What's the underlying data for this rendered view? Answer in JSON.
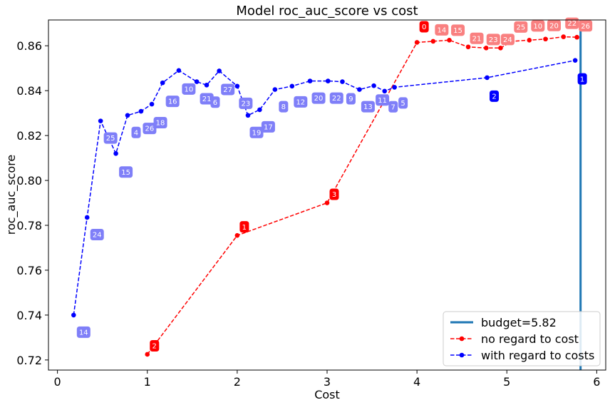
{
  "chart_data": {
    "type": "line",
    "title": "Model roc_auc_score vs cost",
    "xlabel": "Cost",
    "ylabel": "roc_auc_score",
    "xlim": [
      -0.1,
      6.1
    ],
    "ylim": [
      0.7155,
      0.8715
    ],
    "xticks": [
      0,
      1,
      2,
      3,
      4,
      5,
      6
    ],
    "yticks": [
      0.72,
      0.74,
      0.76,
      0.78,
      0.8,
      0.82,
      0.84,
      0.86
    ],
    "ytick_labels": [
      "0.72",
      "0.74",
      "0.76",
      "0.78",
      "0.80",
      "0.82",
      "0.84",
      "0.86"
    ],
    "grid": false,
    "legend_position": "lower-right",
    "budget": {
      "label": "budget=5.82",
      "x": 5.82,
      "color": "#1f77b4"
    },
    "series": [
      {
        "name": "no regard to cost",
        "color": "#ff0000",
        "style": "dashed",
        "points": [
          {
            "x": 1.0,
            "y": 0.7225,
            "label": "2"
          },
          {
            "x": 2.0,
            "y": 0.7755,
            "label": "1"
          },
          {
            "x": 3.0,
            "y": 0.79,
            "label": "3"
          },
          {
            "x": 4.0,
            "y": 0.8615,
            "label": "0"
          },
          {
            "x": 4.18,
            "y": 0.862,
            "label": "14"
          },
          {
            "x": 4.36,
            "y": 0.8625,
            "label": "15"
          },
          {
            "x": 4.57,
            "y": 0.8595,
            "label": "21"
          },
          {
            "x": 4.77,
            "y": 0.859,
            "label": "23"
          },
          {
            "x": 4.93,
            "y": 0.859,
            "label": "24"
          },
          {
            "x": 5.06,
            "y": 0.862,
            "label": "25"
          },
          {
            "x": 5.25,
            "y": 0.8625,
            "label": "10"
          },
          {
            "x": 5.43,
            "y": 0.863,
            "label": "20"
          },
          {
            "x": 5.63,
            "y": 0.864,
            "label": "22"
          },
          {
            "x": 5.78,
            "y": 0.8638,
            "label": "26"
          }
        ]
      },
      {
        "name": "with regard to costs",
        "color": "#0000ff",
        "style": "dashed",
        "points": [
          {
            "x": 0.18,
            "y": 0.74,
            "label": "14"
          },
          {
            "x": 0.33,
            "y": 0.7835,
            "label": "24"
          },
          {
            "x": 0.48,
            "y": 0.8265,
            "label": "25"
          },
          {
            "x": 0.65,
            "y": 0.812,
            "label": "15"
          },
          {
            "x": 0.78,
            "y": 0.829,
            "label": "4"
          },
          {
            "x": 0.93,
            "y": 0.8308,
            "label": "26"
          },
          {
            "x": 1.05,
            "y": 0.834,
            "label": "18"
          },
          {
            "x": 1.17,
            "y": 0.8435,
            "label": "16"
          },
          {
            "x": 1.35,
            "y": 0.849,
            "label": "10"
          },
          {
            "x": 1.55,
            "y": 0.844,
            "label": "21"
          },
          {
            "x": 1.66,
            "y": 0.8425,
            "label": "6"
          },
          {
            "x": 1.8,
            "y": 0.8488,
            "label": "27"
          },
          {
            "x": 2.0,
            "y": 0.842,
            "label": "23"
          },
          {
            "x": 2.12,
            "y": 0.829,
            "label": "19"
          },
          {
            "x": 2.25,
            "y": 0.8315,
            "label": "17"
          },
          {
            "x": 2.42,
            "y": 0.8405,
            "label": "8"
          },
          {
            "x": 2.61,
            "y": 0.842,
            "label": "12"
          },
          {
            "x": 2.81,
            "y": 0.8443,
            "label": "20"
          },
          {
            "x": 3.01,
            "y": 0.8443,
            "label": "22"
          },
          {
            "x": 3.17,
            "y": 0.844,
            "label": "9"
          },
          {
            "x": 3.36,
            "y": 0.8405,
            "label": "13"
          },
          {
            "x": 3.52,
            "y": 0.8422,
            "label": "11"
          },
          {
            "x": 3.64,
            "y": 0.8398,
            "label": "7"
          },
          {
            "x": 3.75,
            "y": 0.8415,
            "label": "5"
          },
          {
            "x": 4.78,
            "y": 0.8458,
            "label": "2"
          },
          {
            "x": 5.76,
            "y": 0.8535,
            "label": "1"
          }
        ]
      }
    ],
    "highlighted_annotations": {
      "no regard to cost": [
        "2",
        "1",
        "3",
        "0"
      ],
      "with regard to costs": [
        "2",
        "1"
      ]
    }
  }
}
